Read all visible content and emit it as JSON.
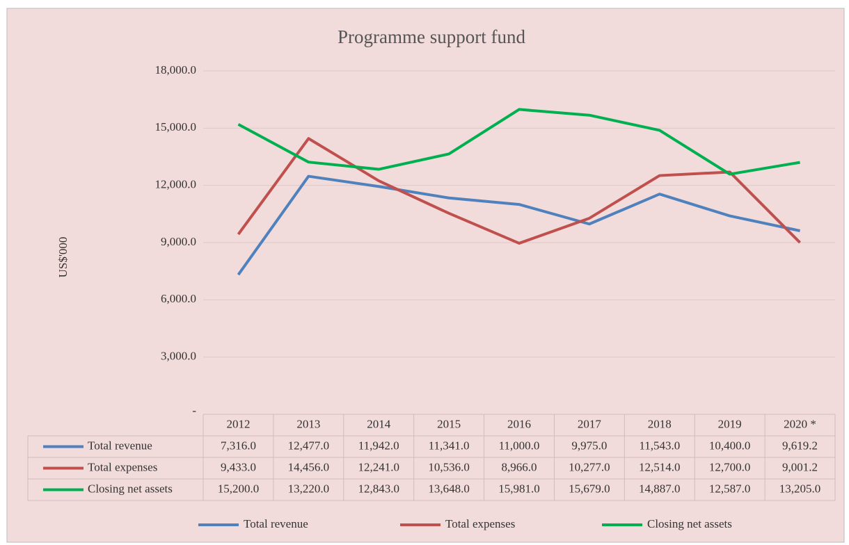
{
  "chart_data": {
    "type": "line",
    "title": "Programme support fund",
    "ylabel": "US$'000",
    "categories": [
      "2012",
      "2013",
      "2014",
      "2015",
      "2016",
      "2017",
      "2018",
      "2019",
      "2020 *"
    ],
    "series": [
      {
        "name": "Total revenue",
        "color": "#4f81bd",
        "values": [
          7316.0,
          12477.0,
          11942.0,
          11341.0,
          11000.0,
          9975.0,
          11543.0,
          10400.0,
          9619.2
        ],
        "value_labels": [
          "7,316.0",
          "12,477.0",
          "11,942.0",
          "11,341.0",
          "11,000.0",
          "9,975.0",
          "11,543.0",
          "10,400.0",
          "9,619.2"
        ]
      },
      {
        "name": "Total expenses",
        "color": "#c0504d",
        "values": [
          9433.0,
          14456.0,
          12241.0,
          10536.0,
          8966.0,
          10277.0,
          12514.0,
          12700.0,
          9001.2
        ],
        "value_labels": [
          "9,433.0",
          "14,456.0",
          "12,241.0",
          "10,536.0",
          "8,966.0",
          "10,277.0",
          "12,514.0",
          "12,700.0",
          "9,001.2"
        ]
      },
      {
        "name": "Closing net assets",
        "color": "#00b050",
        "values": [
          15200.0,
          13220.0,
          12843.0,
          13648.0,
          15981.0,
          15679.0,
          14887.0,
          12587.0,
          13205.0
        ],
        "value_labels": [
          "15,200.0",
          "13,220.0",
          "12,843.0",
          "13,648.0",
          "15,981.0",
          "15,679.0",
          "14,887.0",
          "12,587.0",
          "13,205.0"
        ]
      }
    ],
    "ylim": [
      0,
      18000
    ],
    "yticks": [
      {
        "value": 0,
        "label": "-"
      },
      {
        "value": 3000,
        "label": "3,000.0"
      },
      {
        "value": 6000,
        "label": "6,000.0"
      },
      {
        "value": 9000,
        "label": "9,000.0"
      },
      {
        "value": 12000,
        "label": "12,000.0"
      },
      {
        "value": 15000,
        "label": "15,000.0"
      },
      {
        "value": 18000,
        "label": "18,000.0"
      }
    ],
    "grid": true,
    "legend": "bottom",
    "data_table": true
  }
}
